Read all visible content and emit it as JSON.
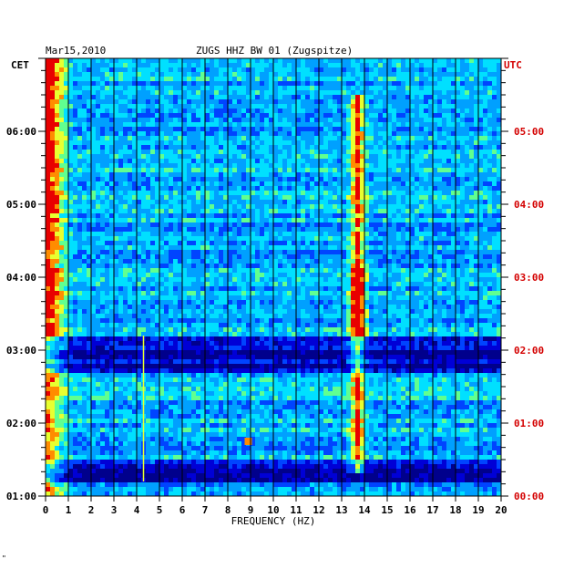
{
  "header": {
    "date": "Mar15,2010",
    "station": "ZUGS HHZ BW 01 (Zugspitze)",
    "left_zone": "CET",
    "right_zone": "UTC",
    "footer_mark": "\""
  },
  "colors": {
    "background": "#0000c8",
    "grid": "#000000",
    "utc_labels": "#d40000",
    "cet_labels": "#000000",
    "ramp": [
      "#00008c",
      "#0000d6",
      "#0044ff",
      "#00a0ff",
      "#00e0ff",
      "#60ff90",
      "#e8ff30",
      "#ff8c00",
      "#e80000"
    ]
  },
  "chart_data": {
    "type": "heatmap",
    "title": "ZUGS HHZ BW 01 (Zugspitze)",
    "xlabel": "FREQUENCY (HZ)",
    "ylabel_left": "CET",
    "ylabel_right": "UTC",
    "xlim": [
      0,
      20
    ],
    "x_ticks": [
      "0",
      "1",
      "2",
      "3",
      "4",
      "5",
      "6",
      "7",
      "8",
      "9",
      "10",
      "11",
      "12",
      "13",
      "14",
      "15",
      "16",
      "17",
      "18",
      "19",
      "20"
    ],
    "y_ticks_left": [
      "06:00",
      "05:00",
      "04:00",
      "03:00",
      "02:00",
      "01:00"
    ],
    "y_ticks_right": [
      "05:00",
      "04:00",
      "03:00",
      "02:00",
      "01:00",
      "00:00"
    ],
    "y_tick_hours_cet": [
      6,
      5,
      4,
      3,
      2,
      1
    ],
    "time_range_cet_hours": [
      1.0,
      6.95
    ],
    "grid": true,
    "features": [
      {
        "kind": "low-frequency noise band",
        "freq_hz": [
          0.0,
          1.2
        ],
        "hours_cet": [
          1.0,
          6.95
        ]
      },
      {
        "kind": "persistent spectral line",
        "freq_hz": 13.7,
        "hours_cet": [
          1.3,
          6.5
        ]
      },
      {
        "kind": "spike line",
        "freq_hz": 4.3,
        "hours_cet": [
          1.2,
          3.2
        ]
      },
      {
        "kind": "hot spot",
        "freq_hz": 8.9,
        "hours_cet": [
          1.7,
          1.8
        ]
      },
      {
        "kind": "quiet interval",
        "freq_hz": [
          0,
          20
        ],
        "hours_cet": [
          2.7,
          3.2
        ]
      },
      {
        "kind": "quiet interval",
        "freq_hz": [
          0,
          20
        ],
        "hours_cet": [
          1.2,
          1.5
        ]
      }
    ]
  }
}
